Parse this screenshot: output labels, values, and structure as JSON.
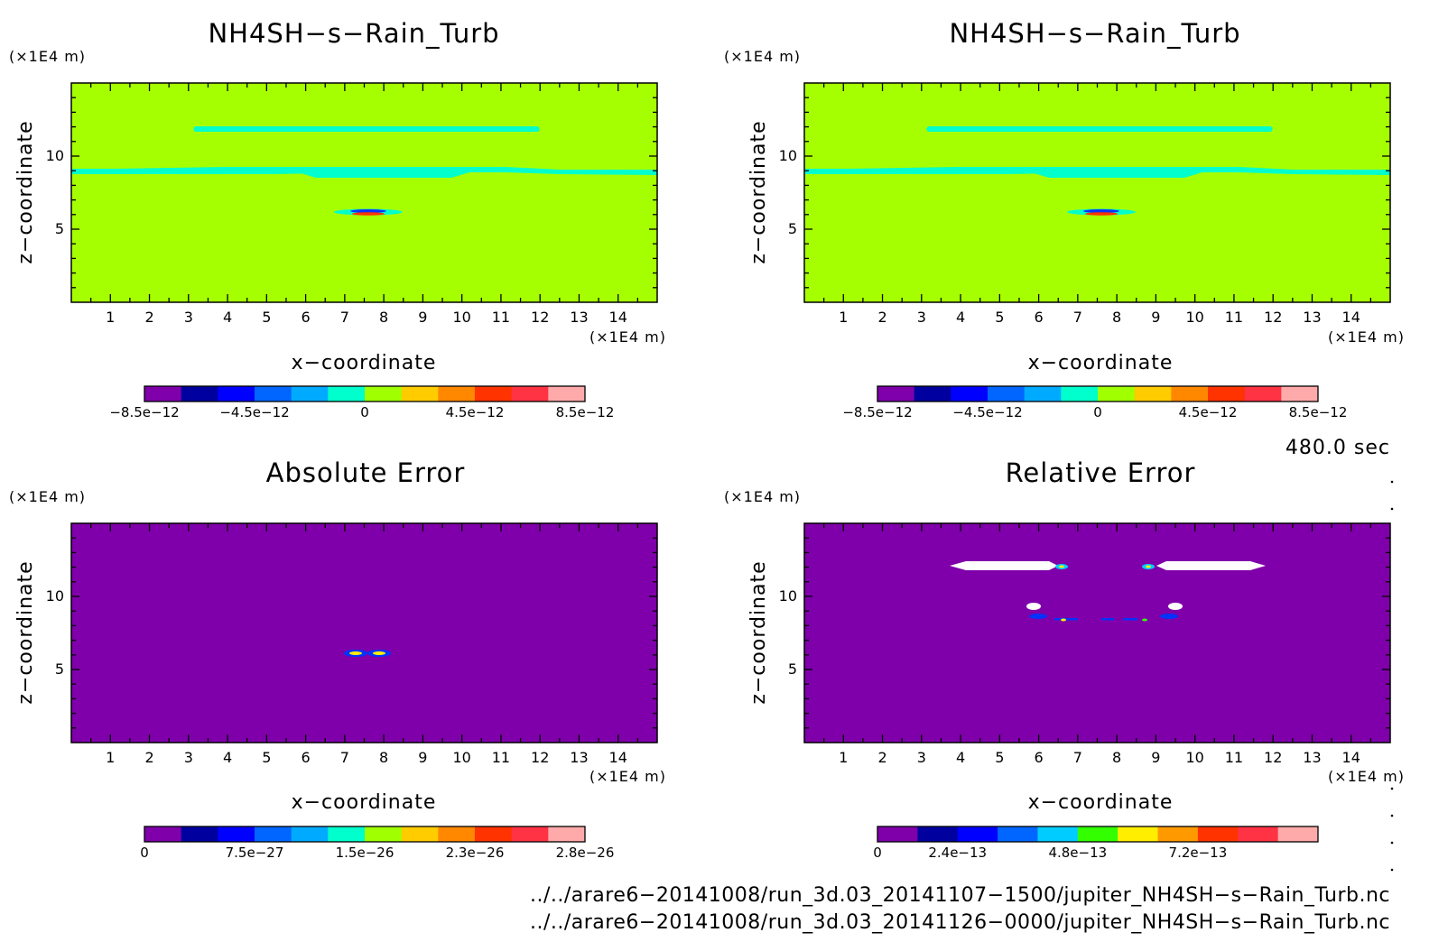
{
  "chart_data": [
    {
      "type": "heatmap",
      "title": "NH4SH−s−Rain_Turb",
      "xlabel": "x−coordinate",
      "ylabel": "z−coordinate",
      "x_unit": "(×1E4 m)",
      "y_unit": "(×1E4 m)",
      "xlim": [
        0,
        15
      ],
      "ylim": [
        0,
        15
      ],
      "x_ticks": [
        "1",
        "2",
        "3",
        "4",
        "5",
        "6",
        "7",
        "8",
        "9",
        "10",
        "11",
        "12",
        "13",
        "14"
      ],
      "y_ticks": [
        "5",
        "10"
      ],
      "colorbar": {
        "colors": [
          "#7f00aa",
          "#00009f",
          "#0000ff",
          "#0066ff",
          "#00aaff",
          "#00ffcc",
          "#a0ff00",
          "#ffcc00",
          "#ff8800",
          "#ff3300",
          "#ff3344",
          "#ffaaaa"
        ],
        "labels": [
          "−8.5e−12",
          "−4.5e−12",
          "0",
          "4.5e−12",
          "8.5e−12"
        ]
      },
      "background": "#a6ff00"
    },
    {
      "type": "heatmap",
      "title": "NH4SH−s−Rain_Turb",
      "xlabel": "x−coordinate",
      "ylabel": "z−coordinate",
      "x_unit": "(×1E4 m)",
      "y_unit": "(×1E4 m)",
      "xlim": [
        0,
        15
      ],
      "ylim": [
        0,
        15
      ],
      "x_ticks": [
        "1",
        "2",
        "3",
        "4",
        "5",
        "6",
        "7",
        "8",
        "9",
        "10",
        "11",
        "12",
        "13",
        "14"
      ],
      "y_ticks": [
        "5",
        "10"
      ],
      "colorbar": {
        "colors": [
          "#7f00aa",
          "#00009f",
          "#0000ff",
          "#0066ff",
          "#00aaff",
          "#00ffcc",
          "#a0ff00",
          "#ffcc00",
          "#ff8800",
          "#ff3300",
          "#ff3344",
          "#ffaaaa"
        ],
        "labels": [
          "−8.5e−12",
          "−4.5e−12",
          "0",
          "4.5e−12",
          "8.5e−12"
        ]
      },
      "background": "#a6ff00"
    },
    {
      "type": "heatmap",
      "title": "Absolute Error",
      "xlabel": "x−coordinate",
      "ylabel": "z−coordinate",
      "x_unit": "(×1E4 m)",
      "y_unit": "(×1E4 m)",
      "xlim": [
        0,
        15
      ],
      "ylim": [
        0,
        15
      ],
      "x_ticks": [
        "1",
        "2",
        "3",
        "4",
        "5",
        "6",
        "7",
        "8",
        "9",
        "10",
        "11",
        "12",
        "13",
        "14"
      ],
      "y_ticks": [
        "5",
        "10"
      ],
      "colorbar": {
        "colors": [
          "#7f00aa",
          "#00009f",
          "#0000ff",
          "#0066ff",
          "#00aaff",
          "#00ffcc",
          "#a0ff00",
          "#ffcc00",
          "#ff8800",
          "#ff3300",
          "#ff3344",
          "#ffaaaa"
        ],
        "labels": [
          "0",
          "7.5e−27",
          "1.5e−26",
          "2.3e−26",
          "2.8e−26"
        ]
      },
      "background": "#7f00aa"
    },
    {
      "type": "heatmap",
      "title": "Relative Error",
      "xlabel": "x−coordinate",
      "ylabel": "z−coordinate",
      "x_unit": "(×1E4 m)",
      "y_unit": "(×1E4 m)",
      "xlim": [
        0,
        15
      ],
      "ylim": [
        0,
        15
      ],
      "x_ticks": [
        "1",
        "2",
        "3",
        "4",
        "5",
        "6",
        "7",
        "8",
        "9",
        "10",
        "11",
        "12",
        "13",
        "14"
      ],
      "y_ticks": [
        "5",
        "10"
      ],
      "colorbar": {
        "colors": [
          "#7f00aa",
          "#00009f",
          "#0000ff",
          "#0066ff",
          "#00ccff",
          "#33ff00",
          "#ffee00",
          "#ff9900",
          "#ff3300",
          "#ff3344",
          "#ffaaaa"
        ],
        "labels": [
          "0",
          "2.4e−13",
          "4.8e−13",
          "7.2e−13"
        ]
      },
      "background": "#7f00aa"
    }
  ],
  "time_label": "480.0 sec",
  "file_paths": [
    "../../arare6−20141008/run_3d.03_20141107−1500/jupiter_NH4SH−s−Rain_Turb.nc",
    "../../arare6−20141008/run_3d.03_20141126−0000/jupiter_NH4SH−s−Rain_Turb.nc"
  ]
}
